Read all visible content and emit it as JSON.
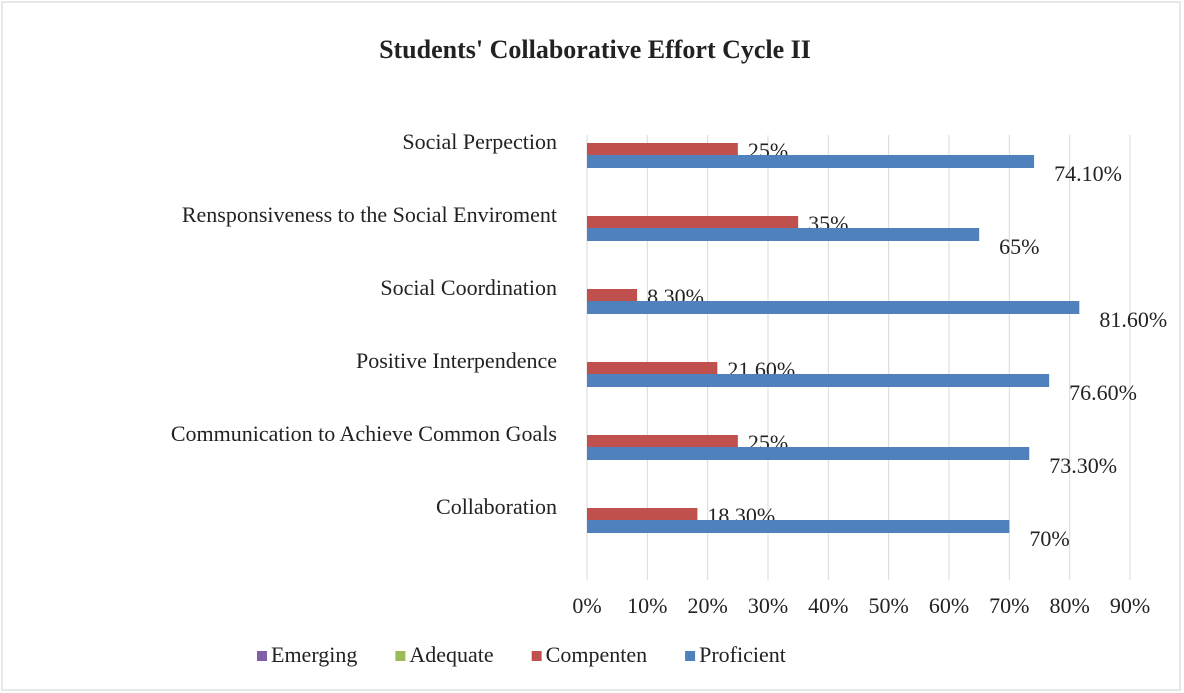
{
  "chart_data": {
    "type": "hbar",
    "title": "Students' Collaborative Effort Cycle II",
    "categories": [
      "Social Perpection",
      "Rensponsiveness to the Social Enviroment",
      "Social Coordination",
      "Positive Interpendence",
      "Communication to Achieve Common Goals",
      "Collaboration"
    ],
    "series": [
      {
        "name": "Emerging",
        "color": "#7f5fa6",
        "values": [
          null,
          null,
          null,
          null,
          null,
          null
        ]
      },
      {
        "name": "Adequate",
        "color": "#9bbb59",
        "values": [
          null,
          null,
          null,
          null,
          null,
          null
        ]
      },
      {
        "name": "Compenten",
        "color": "#c0504d",
        "values": [
          25,
          35,
          8.3,
          21.6,
          25,
          18.3
        ],
        "value_labels": [
          "25%",
          "35%",
          "8.30%",
          "21.60%",
          "25%",
          "18.30%"
        ]
      },
      {
        "name": "Proficient",
        "color": "#4f81bd",
        "values": [
          74.1,
          65,
          81.6,
          76.6,
          73.3,
          70
        ],
        "value_labels": [
          "74.10%",
          "65%",
          "81.60%",
          "76.60%",
          "73.30%",
          "70%"
        ]
      }
    ],
    "xlim": [
      0,
      90
    ],
    "xticks": [
      {
        "value": 0,
        "label": "0%"
      },
      {
        "value": 10,
        "label": "10%"
      },
      {
        "value": 20,
        "label": "20%"
      },
      {
        "value": 30,
        "label": "30%"
      },
      {
        "value": 40,
        "label": "40%"
      },
      {
        "value": 50,
        "label": "50%"
      },
      {
        "value": 60,
        "label": "60%"
      },
      {
        "value": 70,
        "label": "70%"
      },
      {
        "value": 80,
        "label": "80%"
      },
      {
        "value": 90,
        "label": "90%"
      }
    ],
    "grid": true,
    "legend": "bottom"
  }
}
